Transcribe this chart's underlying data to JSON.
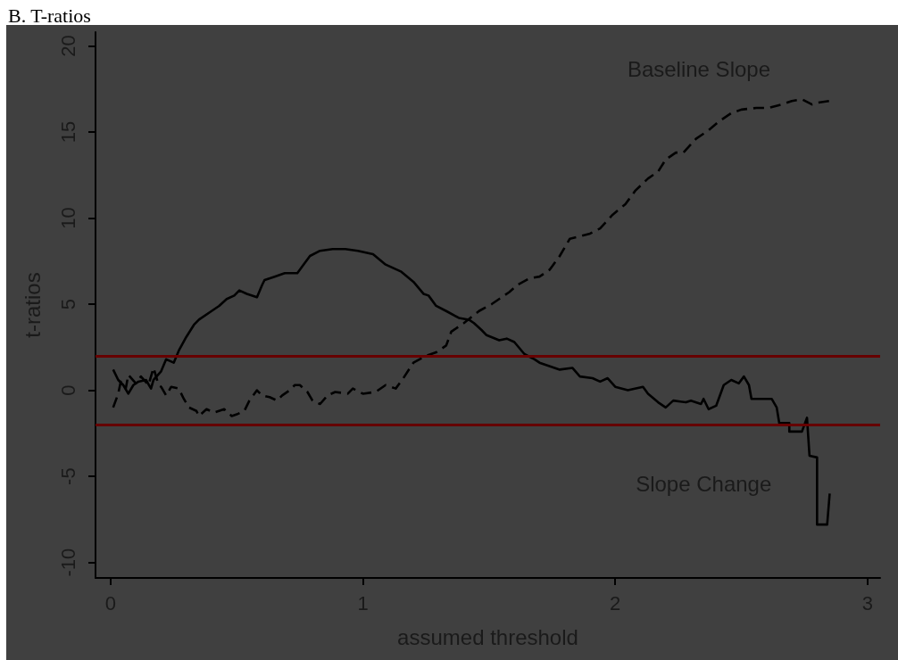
{
  "chart_data": {
    "type": "line",
    "title": "B. T-ratios",
    "xlabel": "assumed threshold",
    "ylabel": "t-ratios",
    "xlim": [
      -0.06,
      3.05
    ],
    "ylim": [
      -10.9,
      20.8
    ],
    "xticks": [
      0,
      1,
      2,
      3
    ],
    "yticks": [
      -10,
      -5,
      0,
      5,
      10,
      15,
      20
    ],
    "grid": false,
    "marker": "none",
    "series": [
      {
        "color": "#000000",
        "line_style": "dashed",
        "x": [
          0.01,
          0.03,
          0.04,
          0.06,
          0.07,
          0.1,
          0.12,
          0.15,
          0.17,
          0.19,
          0.2,
          0.22,
          0.24,
          0.27,
          0.29,
          0.31,
          0.34,
          0.35,
          0.38,
          0.41,
          0.45,
          0.48,
          0.5,
          0.53,
          0.55,
          0.58,
          0.6,
          0.63,
          0.66,
          0.68,
          0.71,
          0.73,
          0.75,
          0.78,
          0.8,
          0.83,
          0.86,
          0.89,
          0.94,
          0.96,
          1.0,
          1.05,
          1.09,
          1.13,
          1.16,
          1.2,
          1.25,
          1.29,
          1.33,
          1.35,
          1.4,
          1.46,
          1.51,
          1.54,
          1.58,
          1.61,
          1.66,
          1.7,
          1.74,
          1.78,
          1.82,
          1.85,
          1.9,
          1.94,
          1.99,
          2.04,
          2.08,
          2.13,
          2.17,
          2.2,
          2.24,
          2.27,
          2.32,
          2.37,
          2.41,
          2.46,
          2.5,
          2.56,
          2.61,
          2.66,
          2.7,
          2.74,
          2.78,
          2.8,
          2.85
        ],
        "values": [
          -1.0,
          -0.2,
          0.5,
          0.1,
          0.9,
          0.4,
          0.8,
          0.3,
          1.3,
          0.3,
          0.2,
          -0.3,
          0.2,
          0.1,
          -0.5,
          -1.0,
          -1.2,
          -1.5,
          -1.1,
          -1.3,
          -1.1,
          -1.5,
          -1.4,
          -1.2,
          -0.6,
          0.0,
          -0.3,
          -0.4,
          -0.6,
          -0.3,
          0.0,
          0.3,
          0.3,
          -0.1,
          -0.6,
          -0.8,
          -0.3,
          -0.1,
          -0.2,
          0.1,
          -0.2,
          -0.1,
          0.3,
          0.1,
          0.7,
          1.6,
          2.0,
          2.2,
          2.6,
          3.4,
          3.9,
          4.6,
          5.0,
          5.3,
          5.7,
          6.1,
          6.5,
          6.6,
          7.0,
          7.8,
          8.8,
          8.9,
          9.1,
          9.4,
          10.2,
          10.8,
          11.6,
          12.3,
          12.7,
          13.4,
          13.8,
          13.8,
          14.6,
          15.1,
          15.6,
          16.1,
          16.3,
          16.4,
          16.4,
          16.6,
          16.8,
          16.9,
          16.6,
          16.7,
          16.8
        ]
      },
      {
        "color": "#000000",
        "line_style": "solid",
        "x": [
          0.01,
          0.03,
          0.05,
          0.07,
          0.09,
          0.11,
          0.14,
          0.16,
          0.17,
          0.2,
          0.22,
          0.25,
          0.27,
          0.3,
          0.33,
          0.35,
          0.4,
          0.43,
          0.46,
          0.49,
          0.51,
          0.54,
          0.58,
          0.6,
          0.61,
          0.65,
          0.69,
          0.74,
          0.76,
          0.79,
          0.83,
          0.88,
          0.93,
          0.98,
          1.04,
          1.09,
          1.15,
          1.2,
          1.24,
          1.26,
          1.29,
          1.33,
          1.38,
          1.42,
          1.44,
          1.47,
          1.49,
          1.54,
          1.57,
          1.6,
          1.64,
          1.68,
          1.7,
          1.78,
          1.83,
          1.86,
          1.91,
          1.94,
          1.97,
          2.0,
          2.05,
          2.11,
          2.13,
          2.17,
          2.2,
          2.23,
          2.28,
          2.3,
          2.34,
          2.35,
          2.37,
          2.4,
          2.43,
          2.46,
          2.49,
          2.51,
          2.53,
          2.54,
          2.62,
          2.64,
          2.65,
          2.69,
          2.69,
          2.74,
          2.76,
          2.77,
          2.8,
          2.8,
          2.84,
          2.85
        ],
        "values": [
          1.2,
          0.6,
          0.3,
          -0.2,
          0.3,
          0.5,
          0.6,
          0.1,
          0.6,
          1.1,
          1.8,
          1.6,
          2.3,
          3.1,
          3.8,
          4.1,
          4.6,
          4.9,
          5.3,
          5.5,
          5.8,
          5.6,
          5.4,
          6.1,
          6.4,
          6.6,
          6.8,
          6.8,
          7.2,
          7.8,
          8.1,
          8.2,
          8.2,
          8.1,
          7.9,
          7.3,
          6.9,
          6.3,
          5.6,
          5.5,
          4.9,
          4.6,
          4.2,
          4.1,
          3.9,
          3.5,
          3.2,
          2.9,
          3.0,
          2.8,
          2.1,
          1.8,
          1.6,
          1.2,
          1.3,
          0.8,
          0.7,
          0.5,
          0.7,
          0.2,
          0.0,
          0.2,
          -0.2,
          -0.7,
          -1.0,
          -0.6,
          -0.7,
          -0.6,
          -0.8,
          -0.5,
          -1.1,
          -0.9,
          0.3,
          0.6,
          0.4,
          0.8,
          0.3,
          -0.5,
          -0.5,
          -1.0,
          -1.9,
          -1.9,
          -2.4,
          -2.4,
          -1.6,
          -3.8,
          -3.9,
          -7.8,
          -7.8,
          -6.0
        ]
      }
    ],
    "ref_lines": [
      {
        "axis": "y",
        "value": 2,
        "color": "#660000"
      },
      {
        "axis": "y",
        "value": -2,
        "color": "#660000"
      }
    ],
    "annotations": [
      "Baseline Slope",
      "Slope Change"
    ]
  }
}
